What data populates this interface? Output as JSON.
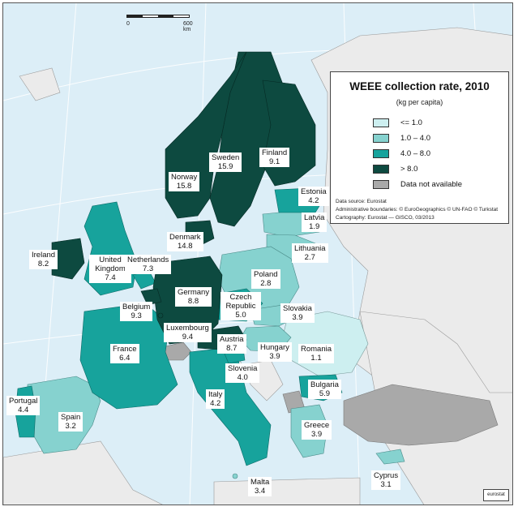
{
  "map": {
    "title": "WEEE collection rate, 2010",
    "unit": "(kg per capita)",
    "scale": {
      "start": "0",
      "end": "600 km"
    },
    "legend": [
      {
        "label": "<= 1.0",
        "color": "#cdeff0"
      },
      {
        "label": "1.0 – 4.0",
        "color": "#86d2cf"
      },
      {
        "label": "4.0 – 8.0",
        "color": "#17a39c"
      },
      {
        "label": "> 8.0",
        "color": "#0d4a40"
      },
      {
        "label": "Data not available",
        "color": "#a9a9a9"
      }
    ],
    "source": [
      "Data source: Eurostat",
      "Administrative boundaries: © EuroGeographics © UN-FAO © Turkstat",
      "Cartography: Eurostat — GISCO, 03/2013"
    ],
    "logo": "eurostat",
    "countries": [
      {
        "id": "sweden",
        "name": "Sweden",
        "value": "15.9"
      },
      {
        "id": "finland",
        "name": "Finland",
        "value": "9.1"
      },
      {
        "id": "norway",
        "name": "Norway",
        "value": "15.8"
      },
      {
        "id": "estonia",
        "name": "Estonia",
        "value": "4.2"
      },
      {
        "id": "latvia",
        "name": "Latvia",
        "value": "1.9"
      },
      {
        "id": "denmark",
        "name": "Denmark",
        "value": "14.8"
      },
      {
        "id": "lithuania",
        "name": "Lithuania",
        "value": "2.7"
      },
      {
        "id": "ireland",
        "name": "Ireland",
        "value": "8.2"
      },
      {
        "id": "uk",
        "name": "United Kingdom",
        "value": "7.4"
      },
      {
        "id": "netherlands",
        "name": "Netherlands",
        "value": "7.3"
      },
      {
        "id": "poland",
        "name": "Poland",
        "value": "2.8"
      },
      {
        "id": "germany",
        "name": "Germany",
        "value": "8.8"
      },
      {
        "id": "czech",
        "name": "Czech Republic",
        "value": "5.0"
      },
      {
        "id": "belgium",
        "name": "Belgium",
        "value": "9.3"
      },
      {
        "id": "slovakia",
        "name": "Slovakia",
        "value": "3.9"
      },
      {
        "id": "luxembourg",
        "name": "Luxembourg",
        "value": "9.4"
      },
      {
        "id": "france",
        "name": "France",
        "value": "6.4"
      },
      {
        "id": "austria",
        "name": "Austria",
        "value": "8.7"
      },
      {
        "id": "hungary",
        "name": "Hungary",
        "value": "3.9"
      },
      {
        "id": "romania",
        "name": "Romania",
        "value": "1.1"
      },
      {
        "id": "slovenia",
        "name": "Slovenia",
        "value": "4.0"
      },
      {
        "id": "bulgaria",
        "name": "Bulgaria",
        "value": "5.9"
      },
      {
        "id": "italy",
        "name": "Italy",
        "value": "4.2"
      },
      {
        "id": "portugal",
        "name": "Portugal",
        "value": "4.4"
      },
      {
        "id": "spain",
        "name": "Spain",
        "value": "3.2"
      },
      {
        "id": "greece",
        "name": "Greece",
        "value": "3.9"
      },
      {
        "id": "malta",
        "name": "Malta",
        "value": "3.4"
      },
      {
        "id": "cyprus",
        "name": "Cyprus",
        "value": "3.1"
      }
    ]
  }
}
